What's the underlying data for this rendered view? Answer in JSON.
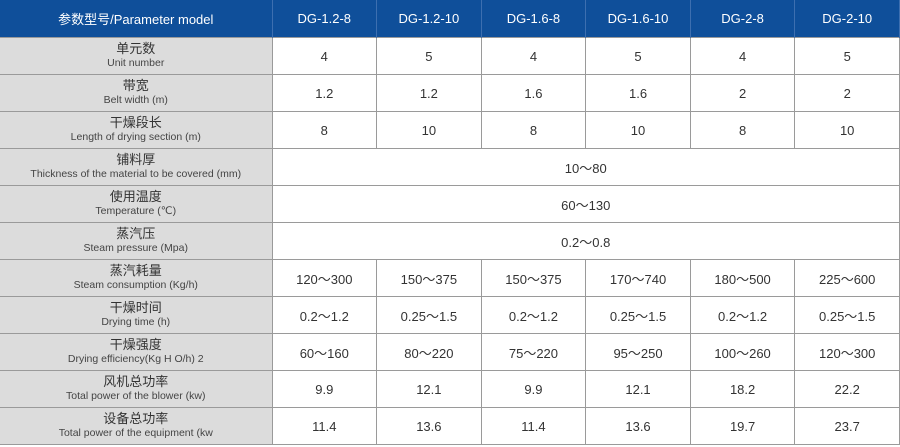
{
  "header": {
    "param_label": "参数型号/Parameter model",
    "models": [
      "DG-1.2-8",
      "DG-1.2-10",
      "DG-1.6-8",
      "DG-1.6-10",
      "DG-2-8",
      "DG-2-10"
    ]
  },
  "colors": {
    "header_bg": "#0f4f9a",
    "param_bg": "#dcdcdc"
  },
  "rows": [
    {
      "cn": "单元数",
      "en": "Unit number",
      "values": [
        "4",
        "5",
        "4",
        "5",
        "4",
        "5"
      ]
    },
    {
      "cn": "带宽",
      "en": "Belt width (m)",
      "values": [
        "1.2",
        "1.2",
        "1.6",
        "1.6",
        "2",
        "2"
      ]
    },
    {
      "cn": "干燥段长",
      "en": "Length of drying section (m)",
      "values": [
        "8",
        "10",
        "8",
        "10",
        "8",
        "10"
      ]
    },
    {
      "cn": "铺料厚",
      "en": "Thickness of the material to be covered (mm)",
      "values": [
        "10～80"
      ]
    },
    {
      "cn": "使用温度",
      "en": "Temperature (℃)",
      "values": [
        "60～130"
      ]
    },
    {
      "cn": "蒸汽压",
      "en": "Steam pressure (Mpa)",
      "values": [
        "0.2～0.8"
      ]
    },
    {
      "cn": "蒸汽耗量",
      "en": "Steam consumption (Kg/h)",
      "values": [
        "120～300",
        "150～375",
        "150～375",
        "170～740",
        "180～500",
        "225～600"
      ]
    },
    {
      "cn": "干燥时间",
      "en": "Drying time (h)",
      "values": [
        "0.2～1.2",
        "0.25～1.5",
        "0.2～1.2",
        "0.25～1.5",
        "0.2～1.2",
        "0.25～1.5"
      ]
    },
    {
      "cn": "干燥强度",
      "en": "Drying efficiency(Kg H O/h) 2",
      "values": [
        "60～160",
        "80～220",
        "75～220",
        "95～250",
        "100～260",
        "120～300"
      ]
    },
    {
      "cn": "风机总功率",
      "en": "Total power of the blower (kw)",
      "values": [
        "9.9",
        "12.1",
        "9.9",
        "12.1",
        "18.2",
        "22.2"
      ]
    },
    {
      "cn": "设备总功率",
      "en": "Total power of the equipment (kw",
      "values": [
        "11.4",
        "13.6",
        "11.4",
        "13.6",
        "19.7",
        "23.7"
      ]
    }
  ]
}
